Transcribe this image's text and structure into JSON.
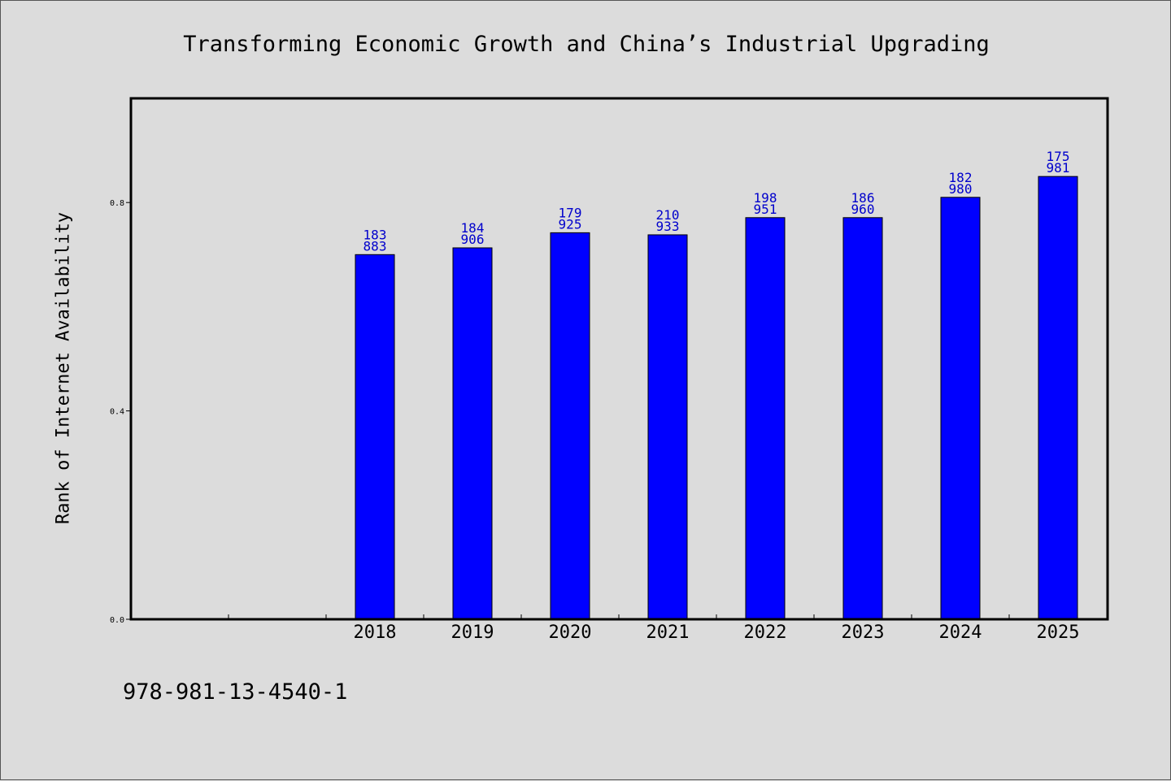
{
  "chart_data": {
    "type": "bar",
    "title": "Transforming Economic Growth and China’s Industrial Upgrading",
    "ylabel": "Rank of Internet Availability",
    "xlabel": "",
    "categories": [
      "2018",
      "2019",
      "2020",
      "2021",
      "2022",
      "2023",
      "2024",
      "2025"
    ],
    "values": [
      0.7,
      0.713,
      0.742,
      0.738,
      0.771,
      0.771,
      0.81,
      0.85
    ],
    "label_top": [
      "183",
      "184",
      "179",
      "210",
      "198",
      "186",
      "182",
      "175"
    ],
    "label_bottom": [
      "883",
      "906",
      "925",
      "933",
      "951",
      "960",
      "980",
      "981"
    ],
    "ylim": [
      0.0,
      1.0
    ],
    "yticks": [
      "0.0",
      "0.4",
      "0.8"
    ],
    "grid": false,
    "bar_color": "#0000ff",
    "label_color": "#0000cc"
  },
  "footer": {
    "isbn": "978-981-13-4540-1"
  }
}
